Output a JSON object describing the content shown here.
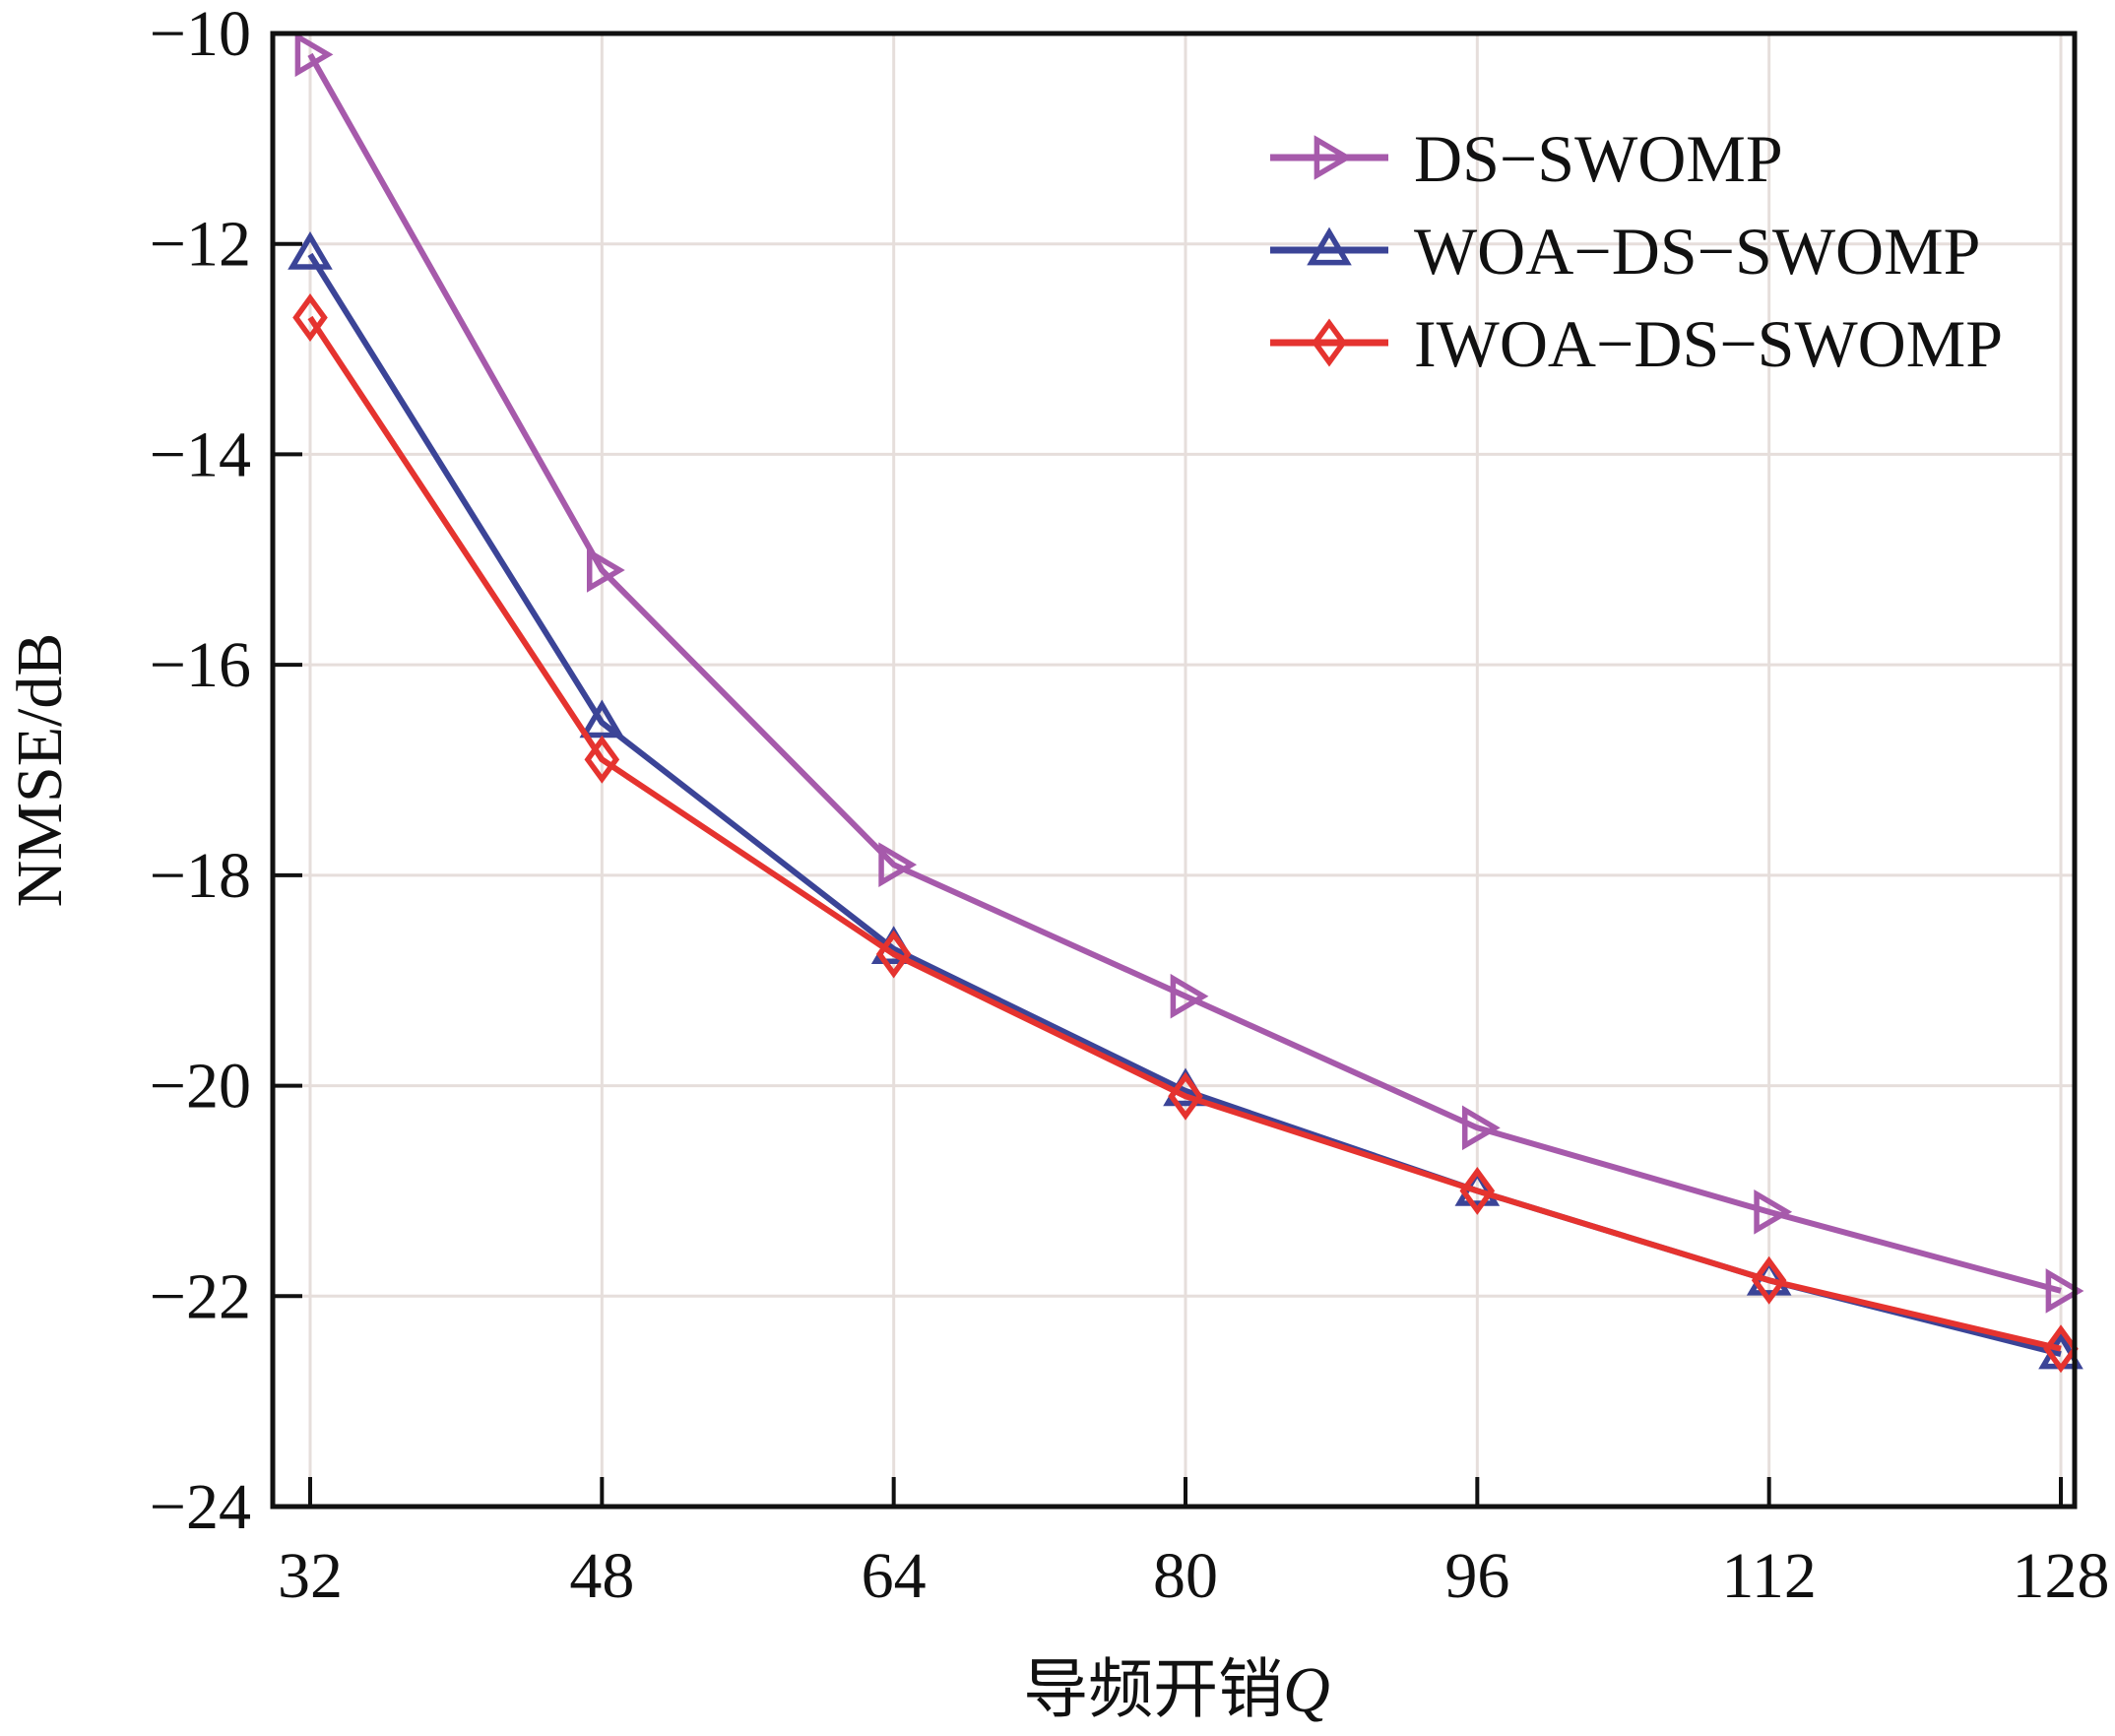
{
  "chart_data": {
    "type": "line",
    "title": "",
    "xlabel": "导频开销",
    "xlabel_var": "Q",
    "ylabel": "NMSE/dB",
    "x": [
      32,
      48,
      64,
      80,
      96,
      112,
      128
    ],
    "xticks": [
      "32",
      "48",
      "64",
      "80",
      "96",
      "112",
      "128"
    ],
    "yticks": [
      "−10",
      "−12",
      "−14",
      "−16",
      "−18",
      "−20",
      "−22",
      "−24"
    ],
    "ytick_values": [
      -10,
      -12,
      -14,
      -16,
      -18,
      -20,
      -22,
      -24
    ],
    "xlim": [
      32,
      128
    ],
    "ylim": [
      -24,
      -10
    ],
    "grid": true,
    "legend_position": "top-right",
    "series": [
      {
        "name": "DS-SWOMP",
        "label": "DS−SWOMP",
        "color": "#a65aab",
        "marker": "triangle-right",
        "values": [
          -10.2,
          -15.1,
          -17.9,
          -19.15,
          -20.4,
          -21.2,
          -21.95
        ]
      },
      {
        "name": "WOA-DS-SWOMP",
        "label": "WOA−DS−SWOMP",
        "color": "#3b4497",
        "marker": "triangle-up",
        "values": [
          -12.1,
          -16.55,
          -18.7,
          -20.05,
          -21.0,
          -21.85,
          -22.55
        ]
      },
      {
        "name": "IWOA-DS-SWOMP",
        "label": "IWOA−DS−SWOMP",
        "color": "#e5332f",
        "marker": "diamond",
        "values": [
          -12.7,
          -16.9,
          -18.75,
          -20.1,
          -21.0,
          -21.85,
          -22.5
        ]
      }
    ]
  }
}
